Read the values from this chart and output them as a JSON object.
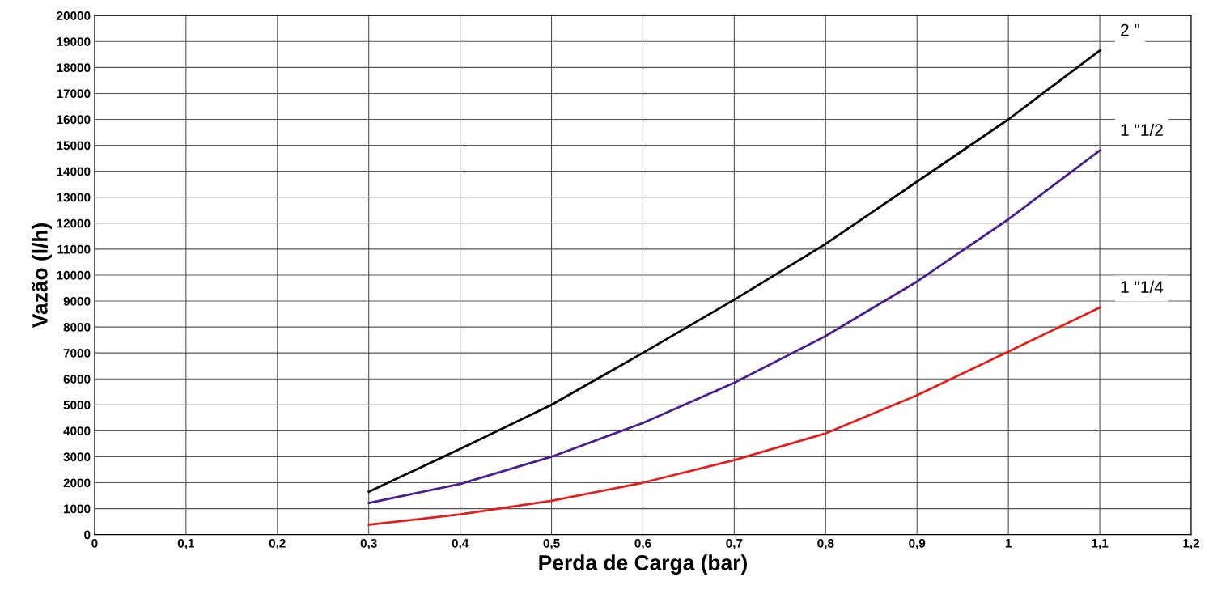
{
  "chart_data": {
    "type": "line",
    "xlabel": "Perda de Carga (bar)",
    "ylabel": "Vazão (l/h)",
    "xlim": [
      0,
      1.2
    ],
    "ylim": [
      0,
      20000
    ],
    "xticks": [
      0,
      {
        "value": 0.1,
        "label": "0,1"
      },
      {
        "value": 0.2,
        "label": "0,2"
      },
      {
        "value": 0.3,
        "label": "0,3"
      },
      {
        "value": 0.4,
        "label": "0,4"
      },
      {
        "value": 0.5,
        "label": "0,5"
      },
      {
        "value": 0.6,
        "label": "0,6"
      },
      {
        "value": 0.7,
        "label": "0,7"
      },
      {
        "value": 0.8,
        "label": "0,8"
      },
      {
        "value": 0.9,
        "label": "0,9"
      },
      1,
      {
        "value": 1.1,
        "label": "1,1"
      },
      {
        "value": 1.2,
        "label": "1,2"
      }
    ],
    "yticks": [
      0,
      1000,
      2000,
      3000,
      4000,
      5000,
      6000,
      7000,
      8000,
      9000,
      10000,
      11000,
      12000,
      13000,
      14000,
      15000,
      16000,
      17000,
      18000,
      19000,
      20000
    ],
    "x": [
      0.3,
      0.4,
      0.5,
      0.6,
      0.7,
      0.8,
      0.9,
      1.0,
      1.1
    ],
    "grid": true,
    "legend": false,
    "marker": "none",
    "line_style": "solid",
    "series": [
      {
        "name": "2 \"",
        "color": "#000000",
        "values": [
          1650,
          3300,
          5000,
          7000,
          9050,
          11200,
          13600,
          16000,
          18650
        ]
      },
      {
        "name": "1 \"1/2",
        "color": "#4b1e8c",
        "values": [
          1220,
          1950,
          3000,
          4300,
          5850,
          7650,
          9750,
          12150,
          14800
        ]
      },
      {
        "name": "1 \"1/4",
        "color": "#e0201c",
        "values": [
          380,
          780,
          1300,
          2000,
          2870,
          3900,
          5370,
          7050,
          8750
        ]
      }
    ]
  }
}
